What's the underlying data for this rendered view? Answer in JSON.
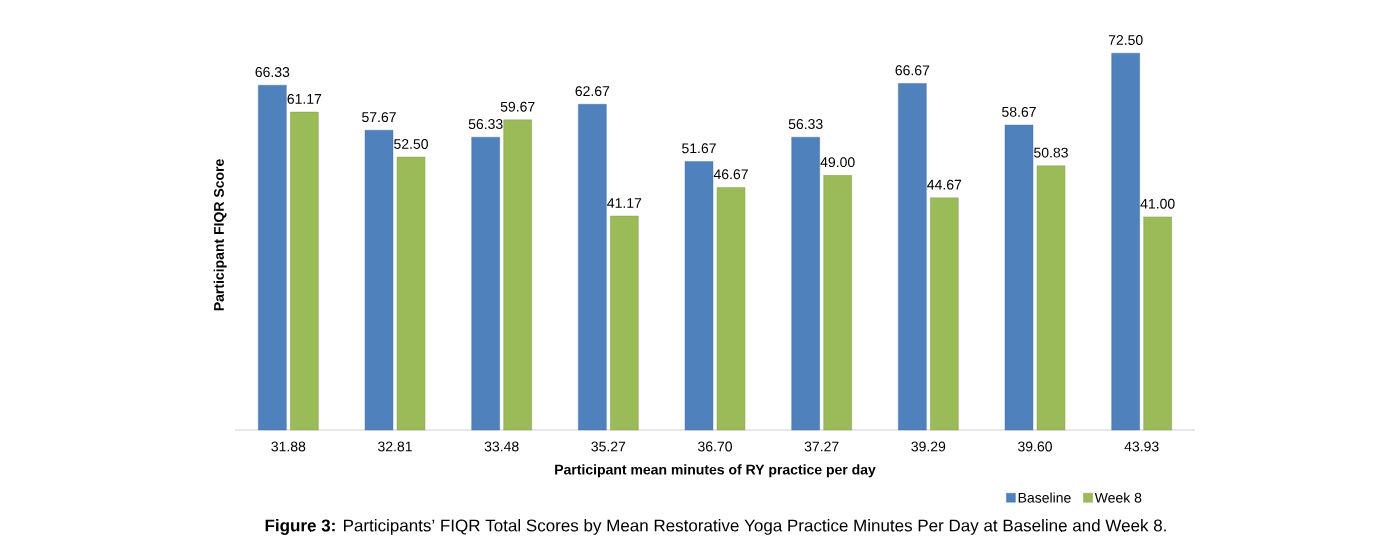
{
  "chart_data": {
    "type": "bar",
    "xlabel": "Participant mean minutes of RY practice per day",
    "ylabel": "Participant FIQR Score",
    "categories": [
      "31.88",
      "32.81",
      "33.48",
      "35.27",
      "36.70",
      "37.27",
      "39.29",
      "39.60",
      "43.93"
    ],
    "series": [
      {
        "name": "Baseline",
        "color": "#4f81bd",
        "values": [
          66.33,
          57.67,
          56.33,
          62.67,
          51.67,
          56.33,
          66.67,
          58.67,
          72.5
        ],
        "value_labels": [
          "66.33",
          "57.67",
          "56.33",
          "62.67",
          "51.67",
          "56.33",
          "66.67",
          "58.67",
          "72.50"
        ]
      },
      {
        "name": "Week 8",
        "color": "#9bbb59",
        "values": [
          61.17,
          52.5,
          59.67,
          41.17,
          46.67,
          49.0,
          44.67,
          50.83,
          41.0
        ],
        "value_labels": [
          "61.17",
          "52.50",
          "59.67",
          "41.17",
          "46.67",
          "49.00",
          "44.67",
          "50.83",
          "41.00"
        ]
      }
    ],
    "legend": "bottom right",
    "annotations": [
      "**Figure 3:** Participants’ FIQR Total Scores by Mean Restorative Yoga Practice Minutes Per Day at Baseline and Week 8."
    ]
  }
}
